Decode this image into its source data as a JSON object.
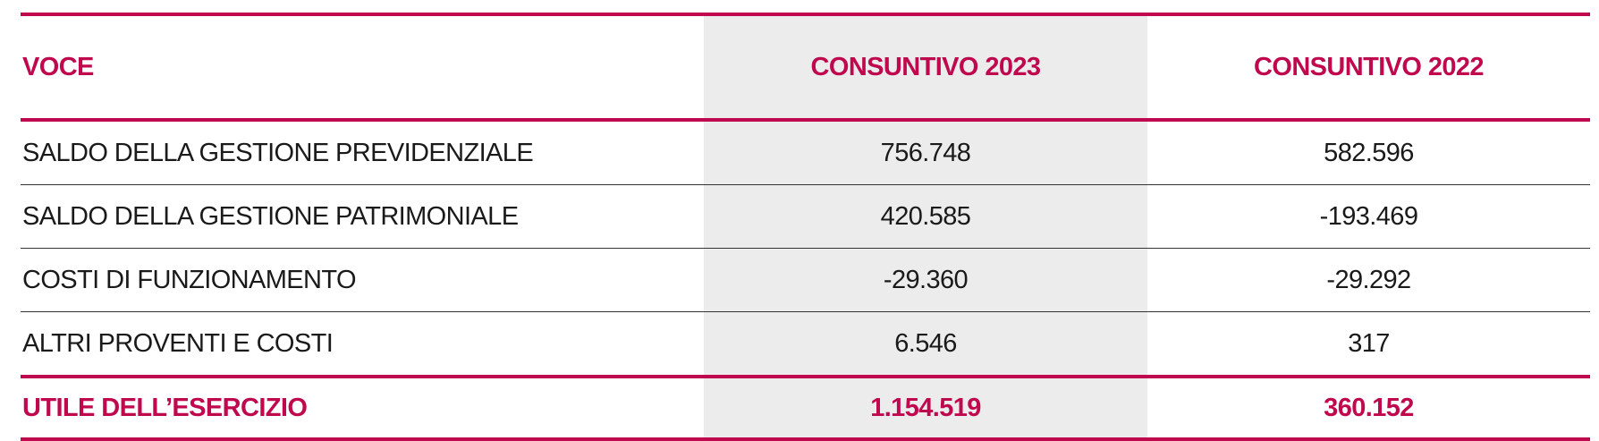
{
  "table": {
    "header": [
      "VOCE",
      "CONSUNTIVO 2023",
      "CONSUNTIVO 2022"
    ],
    "rows": [
      [
        "SALDO DELLA GESTIONE PREVIDENZIALE",
        "756.748",
        "582.596"
      ],
      [
        "SALDO DELLA GESTIONE PATRIMONIALE",
        "420.585",
        "-193.469"
      ],
      [
        "COSTI DI FUNZIONAMENTO",
        "-29.360",
        "-29.292"
      ],
      [
        "ALTRI PROVENTI E COSTI",
        "6.546",
        "317"
      ]
    ],
    "total": [
      "UTILE DELL’ESERCIZIO",
      "1.154.519",
      "360.152"
    ]
  }
}
